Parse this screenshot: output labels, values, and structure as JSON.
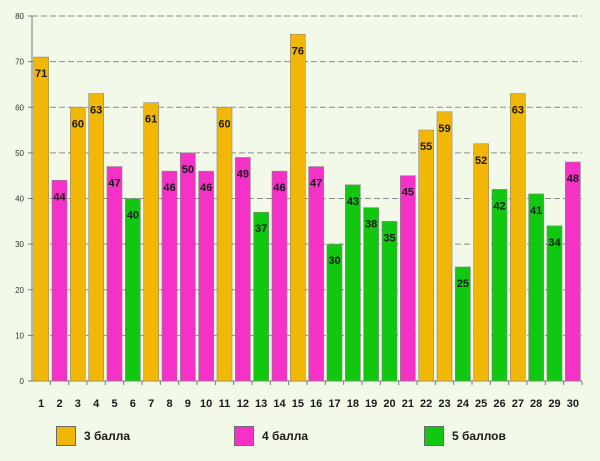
{
  "chart_data": {
    "type": "bar",
    "title": "",
    "xlabel": "",
    "ylabel": "",
    "ylim": [
      0,
      80
    ],
    "yticks": [
      0,
      10,
      20,
      30,
      40,
      50,
      60,
      70,
      80
    ],
    "grid": true,
    "categories": [
      "1",
      "2",
      "3",
      "4",
      "5",
      "6",
      "7",
      "8",
      "9",
      "10",
      "11",
      "12",
      "13",
      "14",
      "15",
      "16",
      "17",
      "18",
      "19",
      "20",
      "21",
      "22",
      "23",
      "24",
      "25",
      "26",
      "27",
      "28",
      "29",
      "30"
    ],
    "values": [
      71,
      44,
      60,
      63,
      47,
      40,
      61,
      46,
      50,
      46,
      60,
      49,
      37,
      46,
      76,
      47,
      30,
      43,
      38,
      35,
      45,
      55,
      59,
      25,
      52,
      42,
      63,
      41,
      34,
      48
    ],
    "series_index": [
      0,
      1,
      0,
      0,
      1,
      2,
      0,
      1,
      1,
      1,
      0,
      1,
      2,
      1,
      0,
      1,
      2,
      2,
      2,
      2,
      1,
      0,
      0,
      2,
      0,
      2,
      0,
      2,
      2,
      1
    ],
    "series": [
      {
        "name": "3 балла",
        "color": "#f2b705"
      },
      {
        "name": "4 балла",
        "color": "#f531c8"
      },
      {
        "name": "5 баллов",
        "color": "#10c810"
      }
    ],
    "legend_position": "bottom"
  }
}
